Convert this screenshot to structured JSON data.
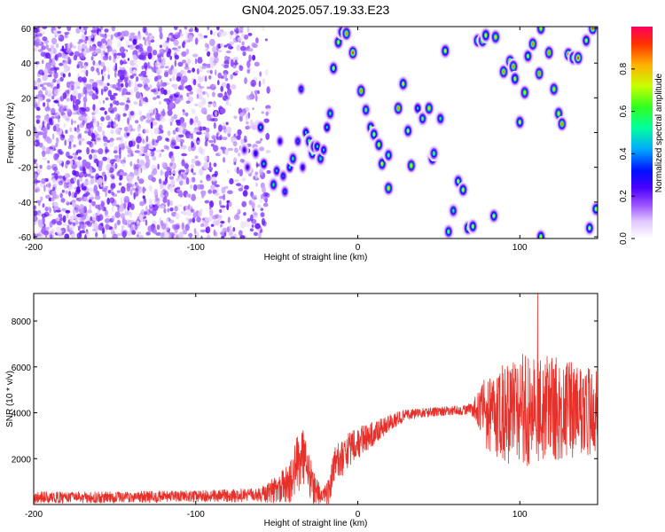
{
  "title": "GN04.2025.057.19.33.E23",
  "colors": {
    "noise": "#7a2ce0",
    "signal_line": "#e8302a",
    "axis": "#000000"
  },
  "chart_data": [
    {
      "type": "heatmap",
      "xlabel": "Height of straight line (km)",
      "ylabel": "Frequency (Hz)",
      "xlim": [
        -200,
        148
      ],
      "ylim": [
        -61,
        61
      ],
      "xticks": [
        -200,
        -100,
        0,
        100
      ],
      "yticks": [
        -60,
        -40,
        -20,
        0,
        20,
        40,
        60
      ],
      "colorbar": {
        "label": "Normalized spectral amplitude",
        "range": [
          0,
          1
        ],
        "ticks": [
          "0.0",
          "0.2",
          "0.4",
          "0.6",
          "0.8"
        ],
        "colormap": [
          "#ffffff",
          "#e8d8ff",
          "#a060ff",
          "#5a00ff",
          "#0000ff",
          "#00c0ff",
          "#00ff40",
          "#c0ff00",
          "#ffd000",
          "#ff4000",
          "#ff0050"
        ]
      },
      "noise_region": {
        "x": [
          -200,
          -55
        ],
        "y": [
          -61,
          61
        ]
      },
      "blobs": [
        [
          -70,
          -10,
          0.35
        ],
        [
          -68,
          -20,
          0.35
        ],
        [
          -63,
          -12,
          0.4
        ],
        [
          -60,
          3,
          0.55
        ],
        [
          -58,
          -18,
          0.55
        ],
        [
          -52,
          -30,
          0.6
        ],
        [
          -50,
          -22,
          0.5
        ],
        [
          -48,
          -5,
          0.4
        ],
        [
          -46,
          -25,
          0.45
        ],
        [
          -45,
          -34,
          0.45
        ],
        [
          -42,
          -20,
          0.55
        ],
        [
          -40,
          -15,
          0.6
        ],
        [
          -37,
          -5,
          0.45
        ],
        [
          -35,
          25,
          0.45
        ],
        [
          -34,
          -20,
          0.4
        ],
        [
          -32,
          0,
          0.55
        ],
        [
          -30,
          -5,
          0.65
        ],
        [
          -28,
          -12,
          0.7
        ],
        [
          -27,
          -8,
          0.6
        ],
        [
          -25,
          -8,
          0.55
        ],
        [
          -23,
          -15,
          0.6
        ],
        [
          -21,
          -10,
          0.5
        ],
        [
          -19,
          3,
          0.55
        ],
        [
          -17,
          11,
          0.6
        ],
        [
          -15,
          37,
          0.7
        ],
        [
          -12,
          52,
          0.75
        ],
        [
          -10,
          58,
          0.6
        ],
        [
          -7,
          57,
          0.85
        ],
        [
          -3,
          46,
          0.9
        ],
        [
          2,
          24,
          0.85
        ],
        [
          5,
          13,
          0.65
        ],
        [
          8,
          3,
          0.7
        ],
        [
          10,
          -1,
          0.7
        ],
        [
          13,
          -7,
          0.75
        ],
        [
          15,
          -18,
          0.75
        ],
        [
          19,
          -13,
          0.65
        ],
        [
          19,
          -32,
          0.8
        ],
        [
          25,
          14,
          0.85
        ],
        [
          28,
          28,
          0.75
        ],
        [
          31,
          1,
          0.7
        ],
        [
          33,
          -19,
          0.8
        ],
        [
          37,
          14,
          0.55
        ],
        [
          40,
          8,
          0.65
        ],
        [
          44,
          14,
          0.8
        ],
        [
          46,
          -15,
          0.75
        ],
        [
          47,
          -12,
          0.65
        ],
        [
          51,
          8,
          0.6
        ],
        [
          54,
          47,
          0.75
        ],
        [
          56,
          -57,
          0.65
        ],
        [
          59,
          -45,
          0.6
        ],
        [
          62,
          -28,
          0.7
        ],
        [
          65,
          -33,
          0.75
        ],
        [
          68,
          -55,
          0.75
        ],
        [
          71,
          -54,
          0.7
        ],
        [
          74,
          53,
          0.85
        ],
        [
          77,
          53,
          0.85
        ],
        [
          79,
          56,
          0.75
        ],
        [
          84,
          -48,
          0.7
        ],
        [
          85,
          55,
          0.8
        ],
        [
          90,
          35,
          0.85
        ],
        [
          94,
          41,
          0.9
        ],
        [
          96,
          38,
          0.85
        ],
        [
          97,
          31,
          0.75
        ],
        [
          100,
          6,
          0.75
        ],
        [
          103,
          23,
          0.8
        ],
        [
          105,
          44,
          0.7
        ],
        [
          108,
          51,
          0.85
        ],
        [
          112,
          34,
          0.85
        ],
        [
          113,
          60,
          0.8
        ],
        [
          113,
          -60,
          0.75
        ],
        [
          118,
          46,
          0.85
        ],
        [
          121,
          25,
          0.8
        ],
        [
          124,
          11,
          0.8
        ],
        [
          126,
          5,
          0.85
        ],
        [
          130,
          45,
          0.9
        ],
        [
          133,
          43,
          0.85
        ],
        [
          136,
          43,
          0.9
        ],
        [
          141,
          53,
          0.7
        ],
        [
          143,
          -55,
          0.7
        ],
        [
          145,
          60,
          0.9
        ],
        [
          147,
          -44,
          0.7
        ]
      ]
    },
    {
      "type": "line",
      "xlabel": "Height of straight line (km)",
      "ylabel": "SNR (10 * v/v)",
      "xlim": [
        -200,
        148
      ],
      "ylim": [
        0,
        9200
      ],
      "xticks": [
        -200,
        -100,
        0,
        100
      ],
      "yticks": [
        2000,
        4000,
        6000,
        8000
      ],
      "series": [
        {
          "x": [
            -200,
            -150,
            -100,
            -60,
            -42,
            -38,
            -34,
            -28,
            -22,
            -18,
            -14,
            -8,
            0,
            10,
            20,
            30,
            40,
            50,
            60,
            70,
            76,
            80,
            90,
            100,
            110,
            120,
            130,
            140,
            148
          ],
          "mean": [
            300,
            320,
            350,
            420,
            900,
            1600,
            2100,
            900,
            300,
            500,
            1700,
            2200,
            2700,
            3100,
            3600,
            3900,
            4000,
            4050,
            4100,
            4150,
            4200,
            4000,
            4000,
            4100,
            4200,
            4300,
            4100,
            4100,
            4100
          ],
          "spread": [
            250,
            250,
            260,
            300,
            900,
            1400,
            1200,
            900,
            400,
            600,
            900,
            800,
            700,
            500,
            350,
            250,
            200,
            200,
            200,
            250,
            1000,
            1800,
            2200,
            2400,
            2600,
            2400,
            2200,
            2000,
            1800
          ],
          "peak": {
            "x": 111,
            "y": 9200
          }
        }
      ]
    }
  ]
}
